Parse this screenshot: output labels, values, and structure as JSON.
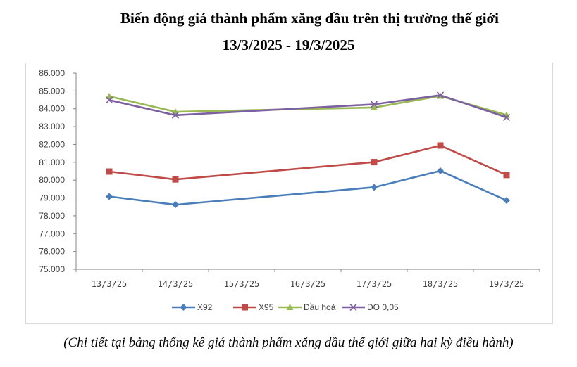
{
  "chart_data": {
    "type": "line",
    "title": "Biến động giá thành phẩm xăng dầu trên thị trường thế giới",
    "subtitle": "13/3/2025 - 19/3/2025",
    "caption": "(Chi tiết tại bảng thống kê giá thành phẩm xăng dầu thế giới giữa hai kỳ điều hành)",
    "categories": [
      "13/3/25",
      "14/3/25",
      "15/3/25",
      "16/3/25",
      "17/3/25",
      "18/3/25",
      "19/3/25"
    ],
    "ylim": [
      75000,
      86000
    ],
    "yticks": [
      "75.000",
      "76.000",
      "77.000",
      "78.000",
      "79.000",
      "80.000",
      "81.000",
      "82.000",
      "83.000",
      "84.000",
      "85.000",
      "86.000"
    ],
    "legend_position": "bottom",
    "series": [
      {
        "name": "X92",
        "color": "#4a7ebb",
        "marker": "diamond",
        "values": [
          79080,
          78620,
          null,
          null,
          79600,
          80520,
          78860
        ]
      },
      {
        "name": "X95",
        "color": "#be4b48",
        "marker": "square",
        "values": [
          80480,
          80040,
          null,
          null,
          81010,
          81940,
          80290
        ]
      },
      {
        "name": "Dầu hoả",
        "color": "#98b954",
        "marker": "triangle",
        "values": [
          84700,
          83830,
          null,
          null,
          84070,
          84720,
          83650
        ]
      },
      {
        "name": "DO 0,05",
        "color": "#7d60a0",
        "marker": "x",
        "values": [
          84490,
          83640,
          null,
          null,
          84250,
          84760,
          83520
        ]
      }
    ]
  }
}
